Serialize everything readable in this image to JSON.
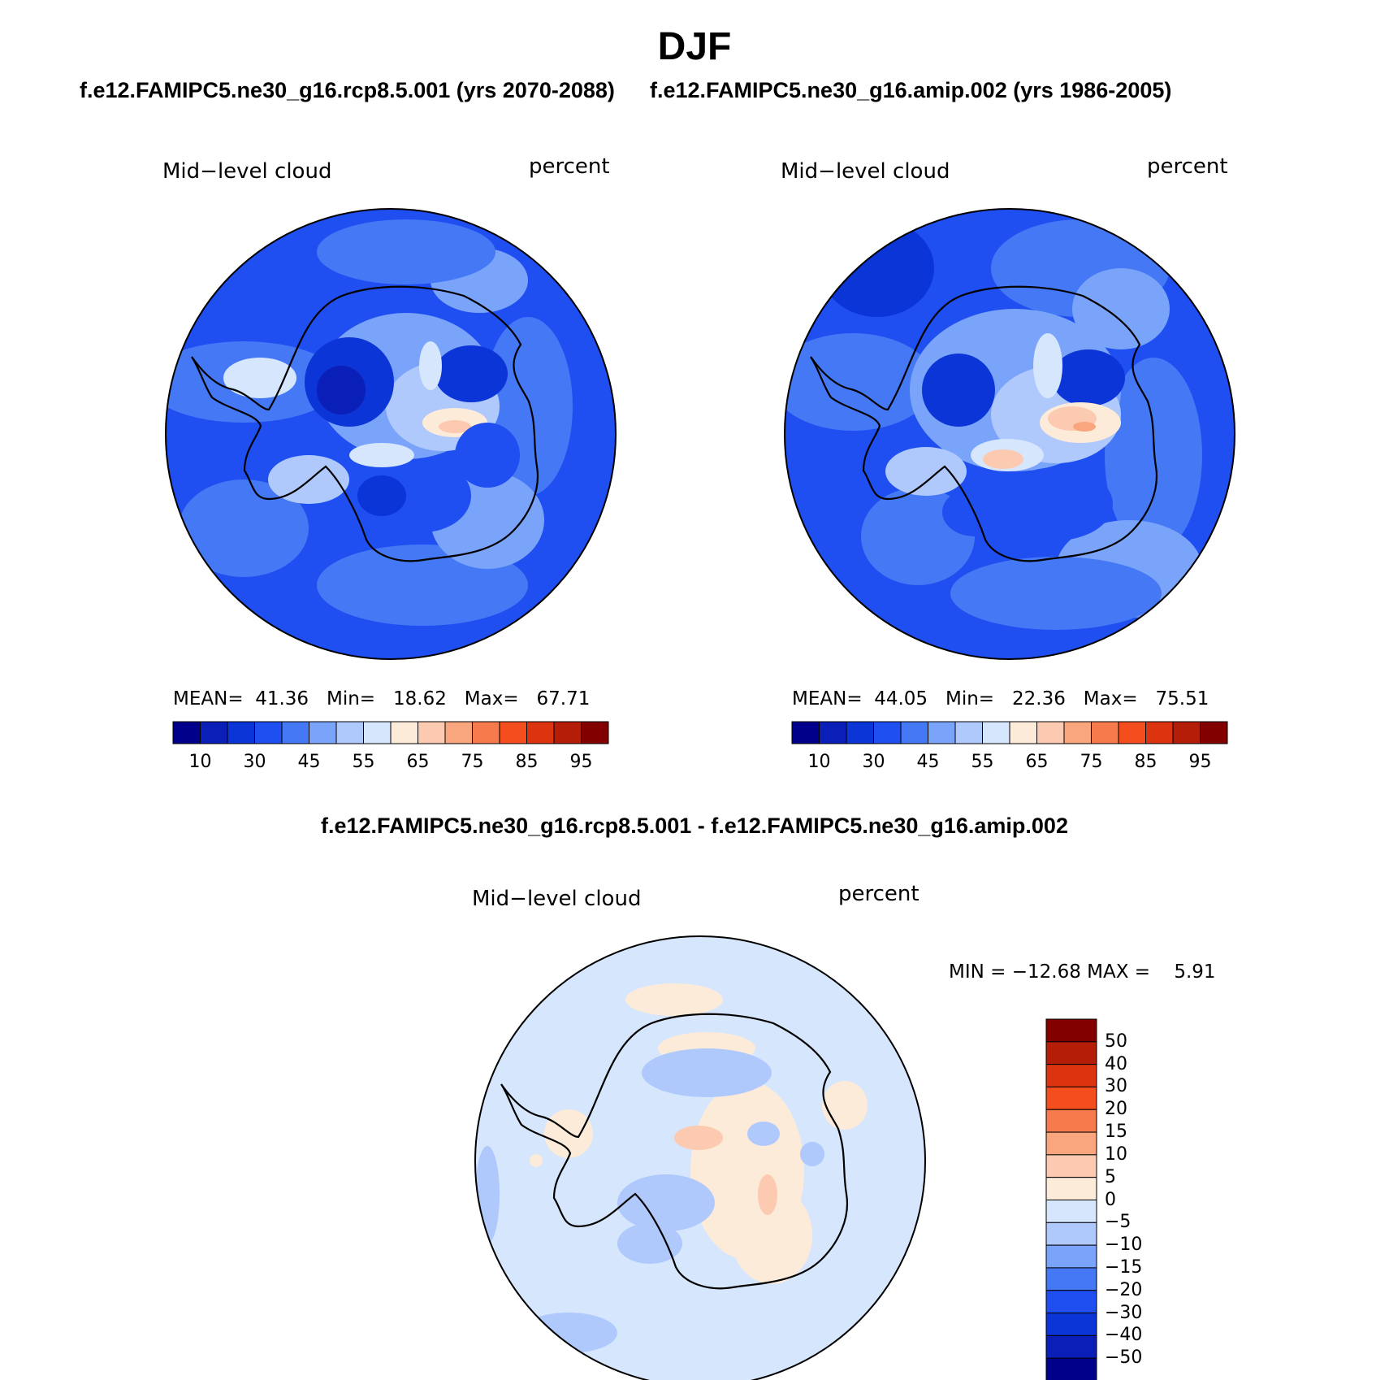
{
  "title": "DJF",
  "top_subtitle_left": "f.e12.FAMIPC5.ne30_g16.rcp8.5.001 (yrs 2070-2088)",
  "top_subtitle_right": "f.e12.FAMIPC5.ne30_g16.amip.002 (yrs 1986-2005)",
  "diff_title": "f.e12.FAMIPC5.ne30_g16.rcp8.5.001 - f.e12.FAMIPC5.ne30_g16.amip.002",
  "panels": [
    {
      "variable": "Mid−level cloud",
      "units": "percent",
      "stats": "MEAN=  41.36   Min=   18.62   Max=   67.71",
      "mean": 41.36,
      "min": 18.62,
      "max": 67.71
    },
    {
      "variable": "Mid−level cloud",
      "units": "percent",
      "stats": "MEAN=  44.05   Min=   22.36   Max=   75.51",
      "mean": 44.05,
      "min": 22.36,
      "max": 75.51
    },
    {
      "variable": "Mid−level cloud",
      "units": "percent",
      "stats": "MIN = −12.68 MAX =    5.91",
      "min": -12.68,
      "max": 5.91
    }
  ],
  "abs_colorbar": {
    "colors": [
      "#00008b",
      "#0a1fb8",
      "#0b35d6",
      "#1f4ff0",
      "#4478f5",
      "#7aa3fa",
      "#b0c9fc",
      "#d6e6fd",
      "#fdebd9",
      "#fccab0",
      "#f9a57e",
      "#f67a4c",
      "#f44e1f",
      "#dd3410",
      "#b41e08",
      "#830000"
    ],
    "labels": [
      "10",
      "30",
      "45",
      "55",
      "65",
      "75",
      "85",
      "95"
    ]
  },
  "diff_colorbar": {
    "colors": [
      "#830000",
      "#b41e08",
      "#dd3410",
      "#f44e1f",
      "#f67a4c",
      "#f9a57e",
      "#fccab0",
      "#fdebd9",
      "#d6e6fd",
      "#b0c9fc",
      "#7aa3fa",
      "#4478f5",
      "#1f4ff0",
      "#0b35d6",
      "#0a1fb8",
      "#00008b"
    ],
    "labels": [
      "50",
      "40",
      "30",
      "20",
      "15",
      "10",
      "5",
      "0",
      "−5",
      "−10",
      "−15",
      "−20",
      "−30",
      "−40",
      "−50"
    ]
  },
  "map_colors": {
    "ocean_base": "#1f4ff0",
    "ocean_light": "#4478f5",
    "light": "#7aa3fa",
    "pale": "#b0c9fc",
    "very_pale": "#d6e6fd",
    "dark": "#0b35d6",
    "darker": "#0a1fb8",
    "warm1": "#fdebd9",
    "warm2": "#fccab0",
    "warm3": "#f9a57e"
  }
}
